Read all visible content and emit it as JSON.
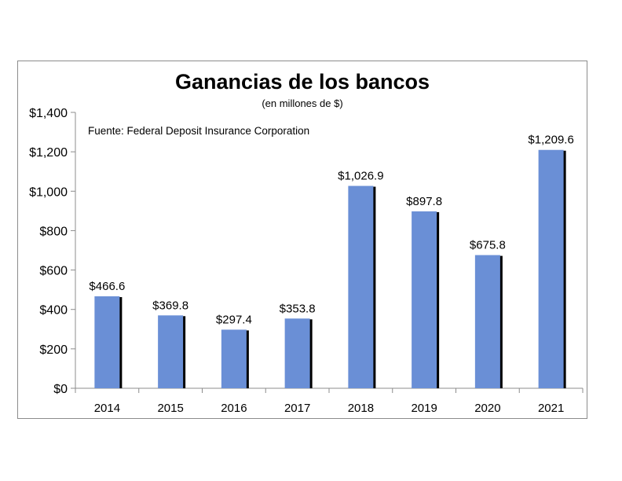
{
  "chart_data": {
    "type": "bar",
    "title": "Ganancias de los bancos",
    "subtitle": "(en millones de $)",
    "annotation": "Fuente: Federal Deposit Insurance Corporation",
    "categories": [
      "2014",
      "2015",
      "2016",
      "2017",
      "2018",
      "2019",
      "2020",
      "2021"
    ],
    "values": [
      466.6,
      369.8,
      297.4,
      353.8,
      1026.9,
      897.8,
      675.8,
      1209.6
    ],
    "value_labels": [
      "$466.6",
      "$369.8",
      "$297.4",
      "$353.8",
      "$1,026.9",
      "$897.8",
      "$675.8",
      "$1,209.6"
    ],
    "ylim": [
      0,
      1400
    ],
    "yticks": [
      0,
      200,
      400,
      600,
      800,
      1000,
      1200,
      1400
    ],
    "ytick_labels": [
      "$0",
      "$200",
      "$400",
      "$600",
      "$800",
      "$1,000",
      "$1,200",
      "$1,400"
    ],
    "grid": false,
    "legend": "none",
    "bar_color": "#6a8fd6",
    "bar_shadow_color": "#000000"
  }
}
